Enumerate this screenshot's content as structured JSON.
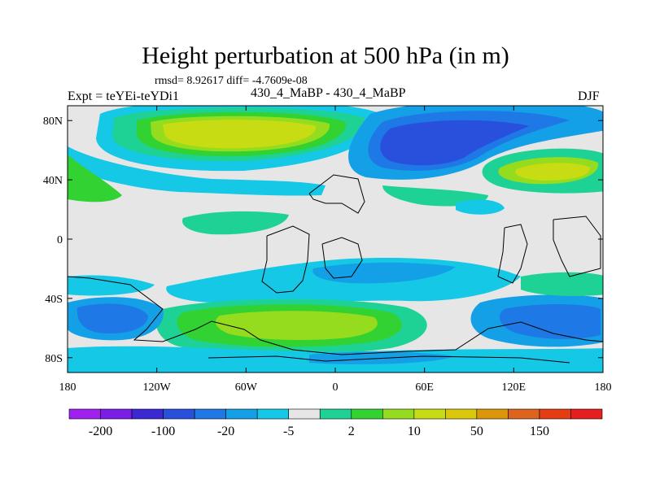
{
  "title": "Height perturbation at 500 hPa (in m)",
  "stats": "rmsd= 8.92617 diff= -4.7609e-08",
  "expt_label": "Expt = teYEi-teYDi1",
  "case_label": "430_4_MaBP - 430_4_MaBP",
  "season_label": "DJF",
  "map": {
    "projection": "cylindrical-equidistant",
    "lon_range": [
      -180,
      180
    ],
    "lat_range": [
      -90,
      90
    ],
    "x_ticks": [
      {
        "value": -180,
        "label": "180"
      },
      {
        "value": -120,
        "label": "120W"
      },
      {
        "value": -60,
        "label": "60W"
      },
      {
        "value": 0,
        "label": "0"
      },
      {
        "value": 60,
        "label": "60E"
      },
      {
        "value": 120,
        "label": "120E"
      },
      {
        "value": 180,
        "label": "180"
      }
    ],
    "y_ticks": [
      {
        "value": 80,
        "label": "80N"
      },
      {
        "value": 40,
        "label": "40N"
      },
      {
        "value": 0,
        "label": "0"
      },
      {
        "value": -40,
        "label": "40S"
      },
      {
        "value": -80,
        "label": "80S"
      }
    ],
    "background_color": "#e6e6e6"
  },
  "colorbar": {
    "colors": [
      "#a020f0",
      "#7a1ee6",
      "#3c28d2",
      "#2850dc",
      "#1e78e6",
      "#14a0e6",
      "#14c8e6",
      "#e6e6e6",
      "#1ed296",
      "#32d232",
      "#96dc1e",
      "#c8dc14",
      "#dcc80a",
      "#dc960a",
      "#dc641e",
      "#e63c14",
      "#e61e1e"
    ],
    "labels": [
      {
        "text": "-200",
        "boundary": 1
      },
      {
        "text": "-100",
        "boundary": 3
      },
      {
        "text": "-20",
        "boundary": 5
      },
      {
        "text": "-5",
        "boundary": 7
      },
      {
        "text": "2",
        "boundary": 9
      },
      {
        "text": "10",
        "boundary": 11
      },
      {
        "text": "50",
        "boundary": 13
      },
      {
        "text": "150",
        "boundary": 15
      }
    ]
  }
}
